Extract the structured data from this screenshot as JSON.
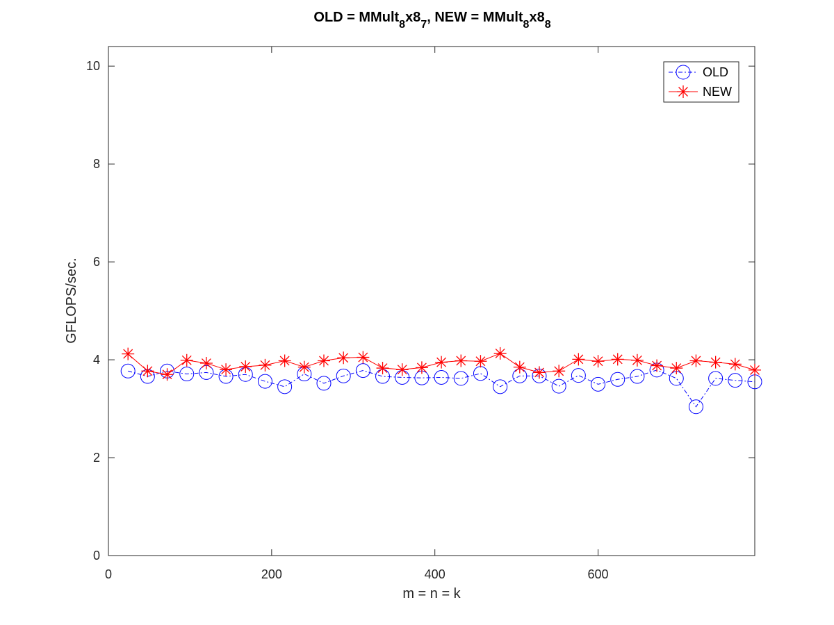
{
  "chart_data": {
    "type": "line",
    "title": {
      "part1": "OLD = MMult",
      "sub1": "8",
      "part2": "x8",
      "sub2": "7",
      "part3": ", NEW = MMult",
      "sub3": "8",
      "part4": "x8",
      "sub4": "8"
    },
    "xlabel": "m = n = k",
    "ylabel": "GFLOPS/sec.",
    "xlim": [
      0,
      792
    ],
    "ylim": [
      0,
      10.4
    ],
    "xticks": [
      0,
      200,
      400,
      600
    ],
    "yticks": [
      0,
      2,
      4,
      6,
      8,
      10
    ],
    "grid": false,
    "legend_position": "top-right",
    "x": [
      24,
      48,
      72,
      96,
      120,
      144,
      168,
      192,
      216,
      240,
      264,
      288,
      312,
      336,
      360,
      384,
      408,
      432,
      456,
      480,
      504,
      528,
      552,
      576,
      600,
      624,
      648,
      672,
      696,
      720,
      744,
      768,
      792
    ],
    "series": [
      {
        "name": "OLD",
        "color": "#0000ff",
        "marker": "circle",
        "line_style": "dash-dot",
        "values": [
          3.77,
          3.66,
          3.77,
          3.71,
          3.74,
          3.66,
          3.7,
          3.56,
          3.45,
          3.71,
          3.52,
          3.67,
          3.78,
          3.66,
          3.64,
          3.63,
          3.64,
          3.62,
          3.72,
          3.45,
          3.67,
          3.67,
          3.46,
          3.68,
          3.5,
          3.6,
          3.66,
          3.79,
          3.62,
          3.04,
          3.62,
          3.58,
          3.55
        ]
      },
      {
        "name": "NEW",
        "color": "#ff0000",
        "marker": "asterisk",
        "line_style": "solid",
        "values": [
          4.12,
          3.77,
          3.7,
          3.99,
          3.93,
          3.8,
          3.86,
          3.89,
          3.98,
          3.85,
          3.98,
          4.04,
          4.05,
          3.83,
          3.8,
          3.84,
          3.95,
          3.98,
          3.97,
          4.13,
          3.85,
          3.74,
          3.77,
          4.01,
          3.97,
          4.01,
          3.99,
          3.88,
          3.83,
          3.98,
          3.95,
          3.91,
          3.79
        ]
      }
    ]
  }
}
